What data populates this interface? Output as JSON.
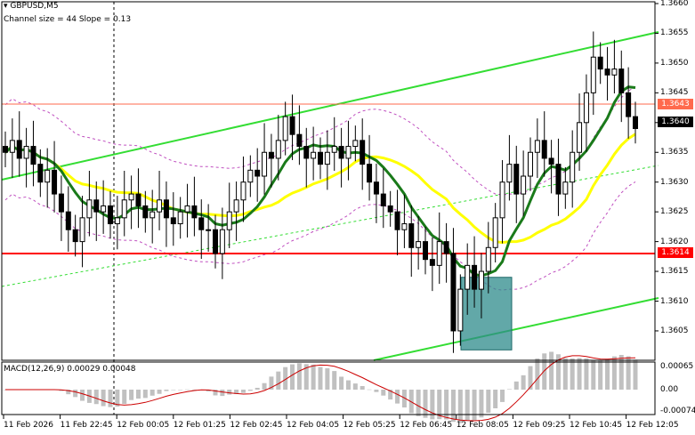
{
  "header": {
    "symbol_line": "GBPUSD,M5",
    "indicator_line": "Channel size = 44 Slope = 0.13"
  },
  "price_axis": {
    "labels": [
      "1.3660",
      "1.3655",
      "1.3650",
      "1.3645",
      "1.3640",
      "1.3635",
      "1.3630",
      "1.3625",
      "1.3620",
      "1.3615",
      "1.3610",
      "1.3605"
    ],
    "current_price": "1.3640",
    "level_high": "1.3643",
    "level_low": "1.3614"
  },
  "time_axis": {
    "labels": [
      "11 Feb 2026",
      "11 Feb 22:45",
      "12 Feb 00:05",
      "12 Feb 01:25",
      "12 Feb 02:45",
      "12 Feb 04:05",
      "12 Feb 05:25",
      "12 Feb 06:45",
      "12 Feb 08:05",
      "12 Feb 09:25",
      "12 Feb 10:45",
      "12 Feb 12:05"
    ]
  },
  "macd": {
    "label": "MACD(12,26,9) 0.00029 0.00048",
    "axis_labels": [
      "0.00065",
      "0.00",
      "-0.00074"
    ]
  },
  "colors": {
    "candles": "#000000",
    "fast_ma": "#1a7a1a",
    "slow_ma": "#ffff00",
    "channel": "#33dd33",
    "level_line_high": "#ff6a4d",
    "level_line_low": "#ff0000",
    "envelope": "#c050c0",
    "highlight_box": "#2e8b8b",
    "macd_hist": "#c0c0c0",
    "macd_signal": "#cc0000"
  },
  "chart_data": {
    "type": "candlestick",
    "price_range": [
      1.3601,
      1.3662
    ],
    "highlight_zone": [
      1.3603,
      1.3614
    ],
    "closes": [
      1.3635,
      1.3637,
      1.3634,
      1.3636,
      1.3633,
      1.363,
      1.3632,
      1.3628,
      1.3625,
      1.3622,
      1.362,
      1.3624,
      1.3627,
      1.3625,
      1.3626,
      1.3623,
      1.3624,
      1.3627,
      1.3628,
      1.3626,
      1.3624,
      1.3625,
      1.3627,
      1.3624,
      1.3623,
      1.3625,
      1.3626,
      1.3624,
      1.3622,
      1.3622,
      1.3618,
      1.3622,
      1.3625,
      1.3627,
      1.363,
      1.3632,
      1.3631,
      1.3635,
      1.3634,
      1.3637,
      1.3641,
      1.3638,
      1.3636,
      1.3634,
      1.3635,
      1.3633,
      1.3635,
      1.3636,
      1.3634,
      1.3636,
      1.3637,
      1.3633,
      1.363,
      1.3628,
      1.3626,
      1.3625,
      1.3622,
      1.3623,
      1.3619,
      1.362,
      1.3617,
      1.3616,
      1.362,
      1.3618,
      1.3605,
      1.3612,
      1.3616,
      1.3612,
      1.3615,
      1.3619,
      1.3624,
      1.363,
      1.3633,
      1.3628,
      1.3631,
      1.3635,
      1.3637,
      1.3634,
      1.3633,
      1.3628,
      1.363,
      1.3635,
      1.364,
      1.3645,
      1.3651,
      1.3649,
      1.3648,
      1.3649,
      1.3645,
      1.3641,
      1.3639
    ]
  }
}
